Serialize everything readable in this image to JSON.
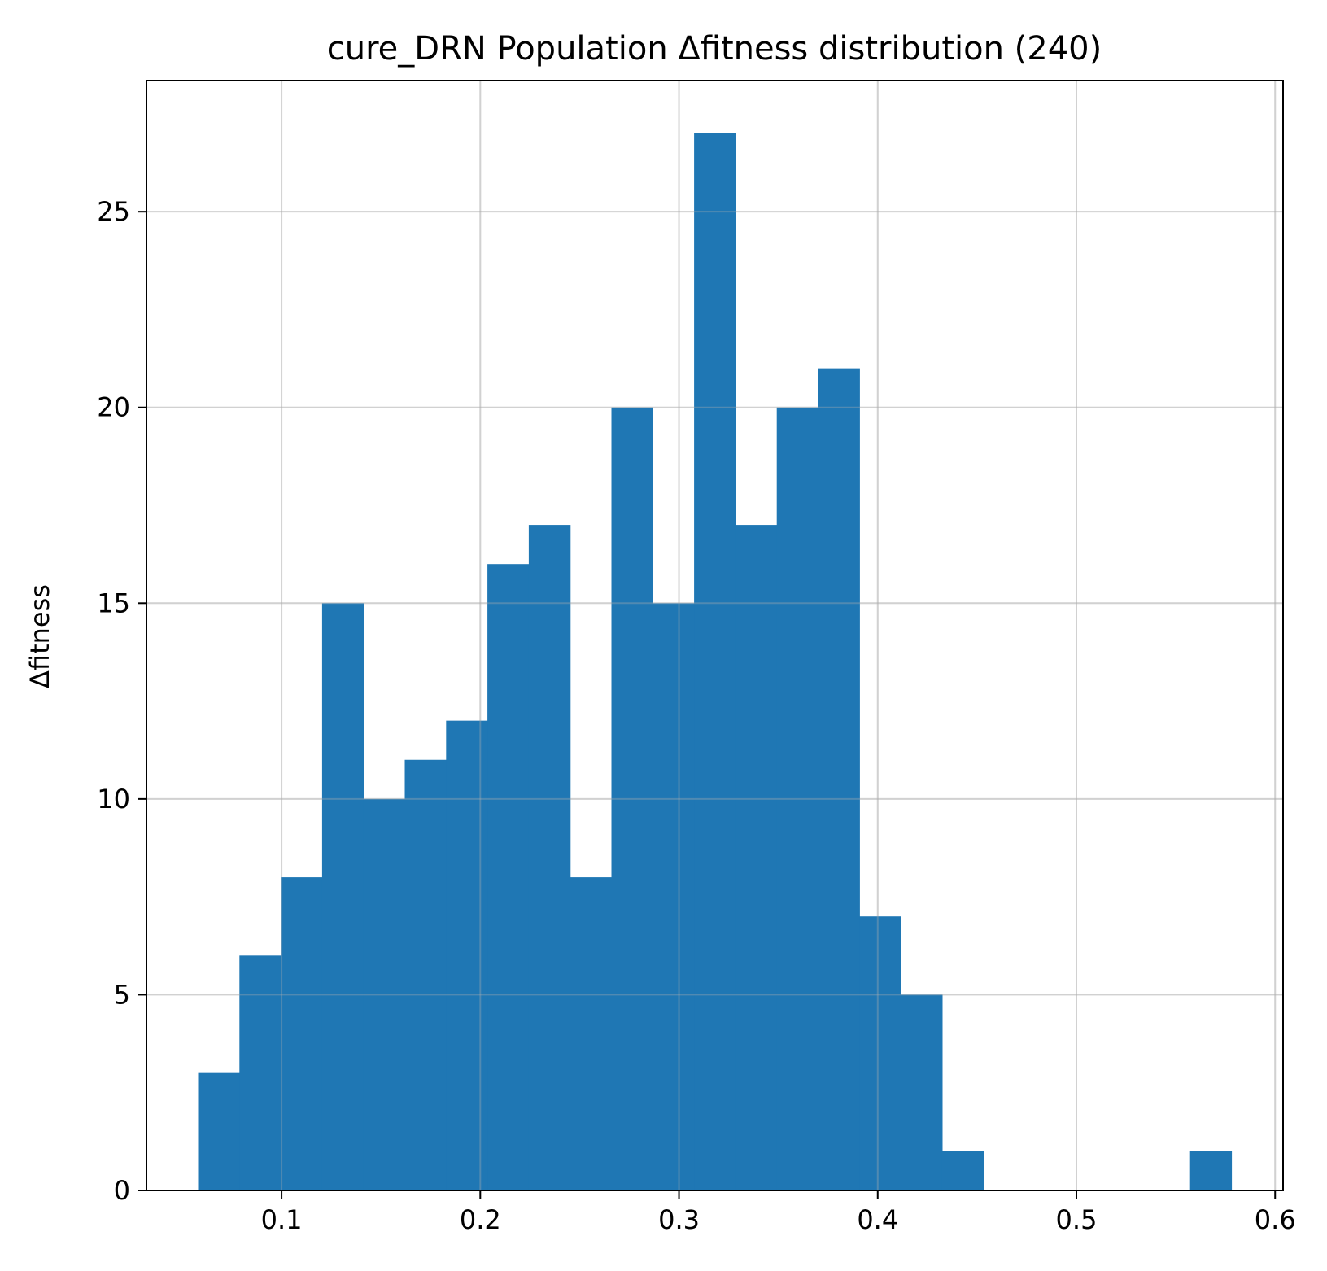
{
  "chart_data": {
    "type": "bar",
    "title": "cure_DRN Population Δfitness distribution (240)",
    "xlabel": "",
    "ylabel": "Δfitness",
    "xlim": [
      0.032,
      0.604
    ],
    "ylim": [
      0,
      28.35
    ],
    "xticks": [
      0.1,
      0.2,
      0.3,
      0.4,
      0.5,
      0.6
    ],
    "xtick_labels": [
      "0.1",
      "0.2",
      "0.3",
      "0.4",
      "0.5",
      "0.6"
    ],
    "yticks": [
      0,
      5,
      10,
      15,
      20,
      25
    ],
    "ytick_labels": [
      "0",
      "5",
      "10",
      "15",
      "20",
      "25"
    ],
    "grid": true,
    "bin_start": 0.058,
    "bin_width": 0.0208,
    "values": [
      3,
      6,
      8,
      15,
      10,
      11,
      12,
      16,
      17,
      8,
      20,
      15,
      27,
      17,
      20,
      21,
      7,
      5,
      1,
      0,
      0,
      0,
      0,
      0,
      1
    ],
    "bar_color": "#1f77b4"
  }
}
